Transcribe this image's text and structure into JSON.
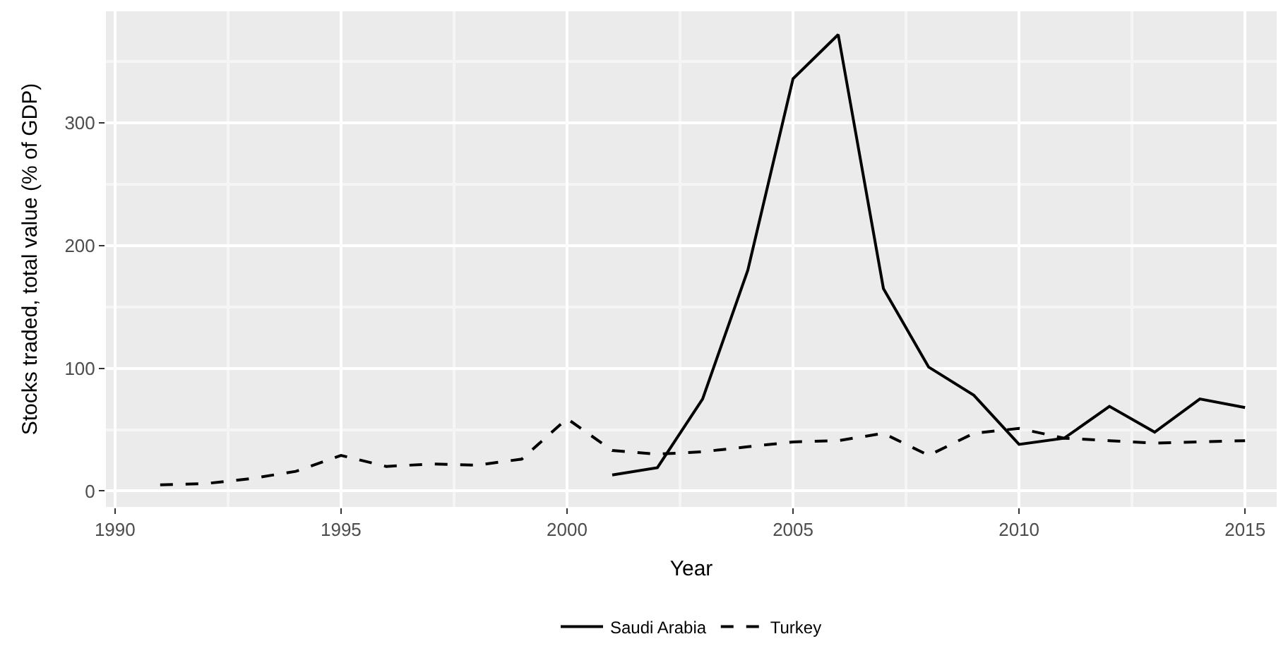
{
  "chart_data": {
    "type": "line",
    "xlabel": "Year",
    "ylabel": "Stocks traded, total value (% of GDP)",
    "xlim": [
      1989.8,
      2015.7
    ],
    "xticks": [
      1990,
      1995,
      2000,
      2005,
      2010,
      2015
    ],
    "ylim": [
      -13,
      391
    ],
    "yticks": [
      0,
      100,
      200,
      300
    ],
    "grid": true,
    "legend": "bottom",
    "marker": "none",
    "series": [
      {
        "name": "Saudi Arabia",
        "color": "#000000",
        "line_style": "solid",
        "x": [
          2001,
          2002,
          2003,
          2004,
          2005,
          2006,
          2007,
          2008,
          2009,
          2010,
          2011,
          2012,
          2013,
          2014,
          2015
        ],
        "values": [
          13,
          19,
          75,
          180,
          336,
          372,
          165,
          101,
          78,
          38,
          43,
          69,
          48,
          75,
          68
        ]
      },
      {
        "name": "Turkey",
        "color": "#000000",
        "line_style": "dashed",
        "x": [
          1991,
          1992,
          1993,
          1994,
          1995,
          1996,
          1997,
          1998,
          1999,
          2000,
          2001,
          2002,
          2003,
          2004,
          2005,
          2006,
          2007,
          2008,
          2009,
          2010,
          2011,
          2012,
          2013,
          2014,
          2015
        ],
        "values": [
          5,
          6,
          10,
          16,
          29,
          20,
          22,
          21,
          26,
          59,
          33,
          30,
          32,
          36,
          40,
          41,
          47,
          29,
          47,
          51,
          43,
          41,
          39,
          40,
          41
        ]
      }
    ]
  }
}
